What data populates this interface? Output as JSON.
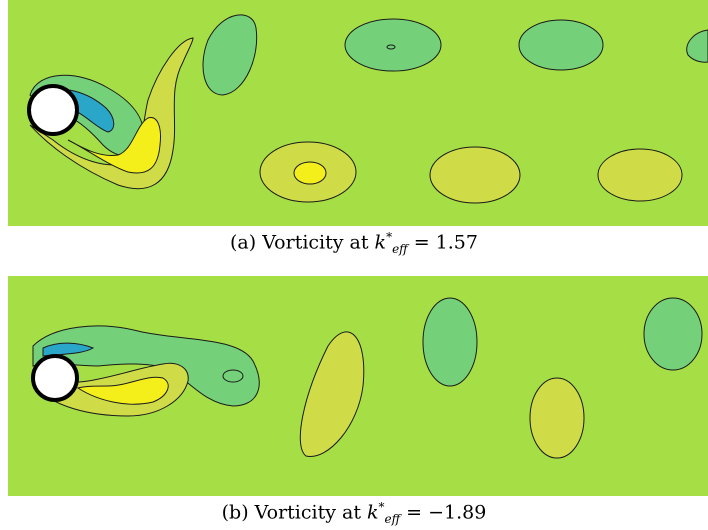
{
  "figure": {
    "panels": [
      {
        "id": "a",
        "label": "(a) Vorticity at",
        "symbol": "k",
        "superscript": "*",
        "subscript": "eff",
        "equals_text": " = 1.57"
      },
      {
        "id": "b",
        "label": "(b) Vorticity at",
        "symbol": "k",
        "superscript": "*",
        "subscript": "eff",
        "equals_text": " = −1.89"
      }
    ]
  },
  "colors": {
    "background": "#a6de45",
    "negative_vortex": "#74d17a",
    "positive_vortex": "#cfdc48",
    "strong_positive": "#f4ef1a",
    "strong_negative": "#2aa6c8",
    "cylinder": "#ffffff",
    "contour": "#1a1a1a"
  }
}
